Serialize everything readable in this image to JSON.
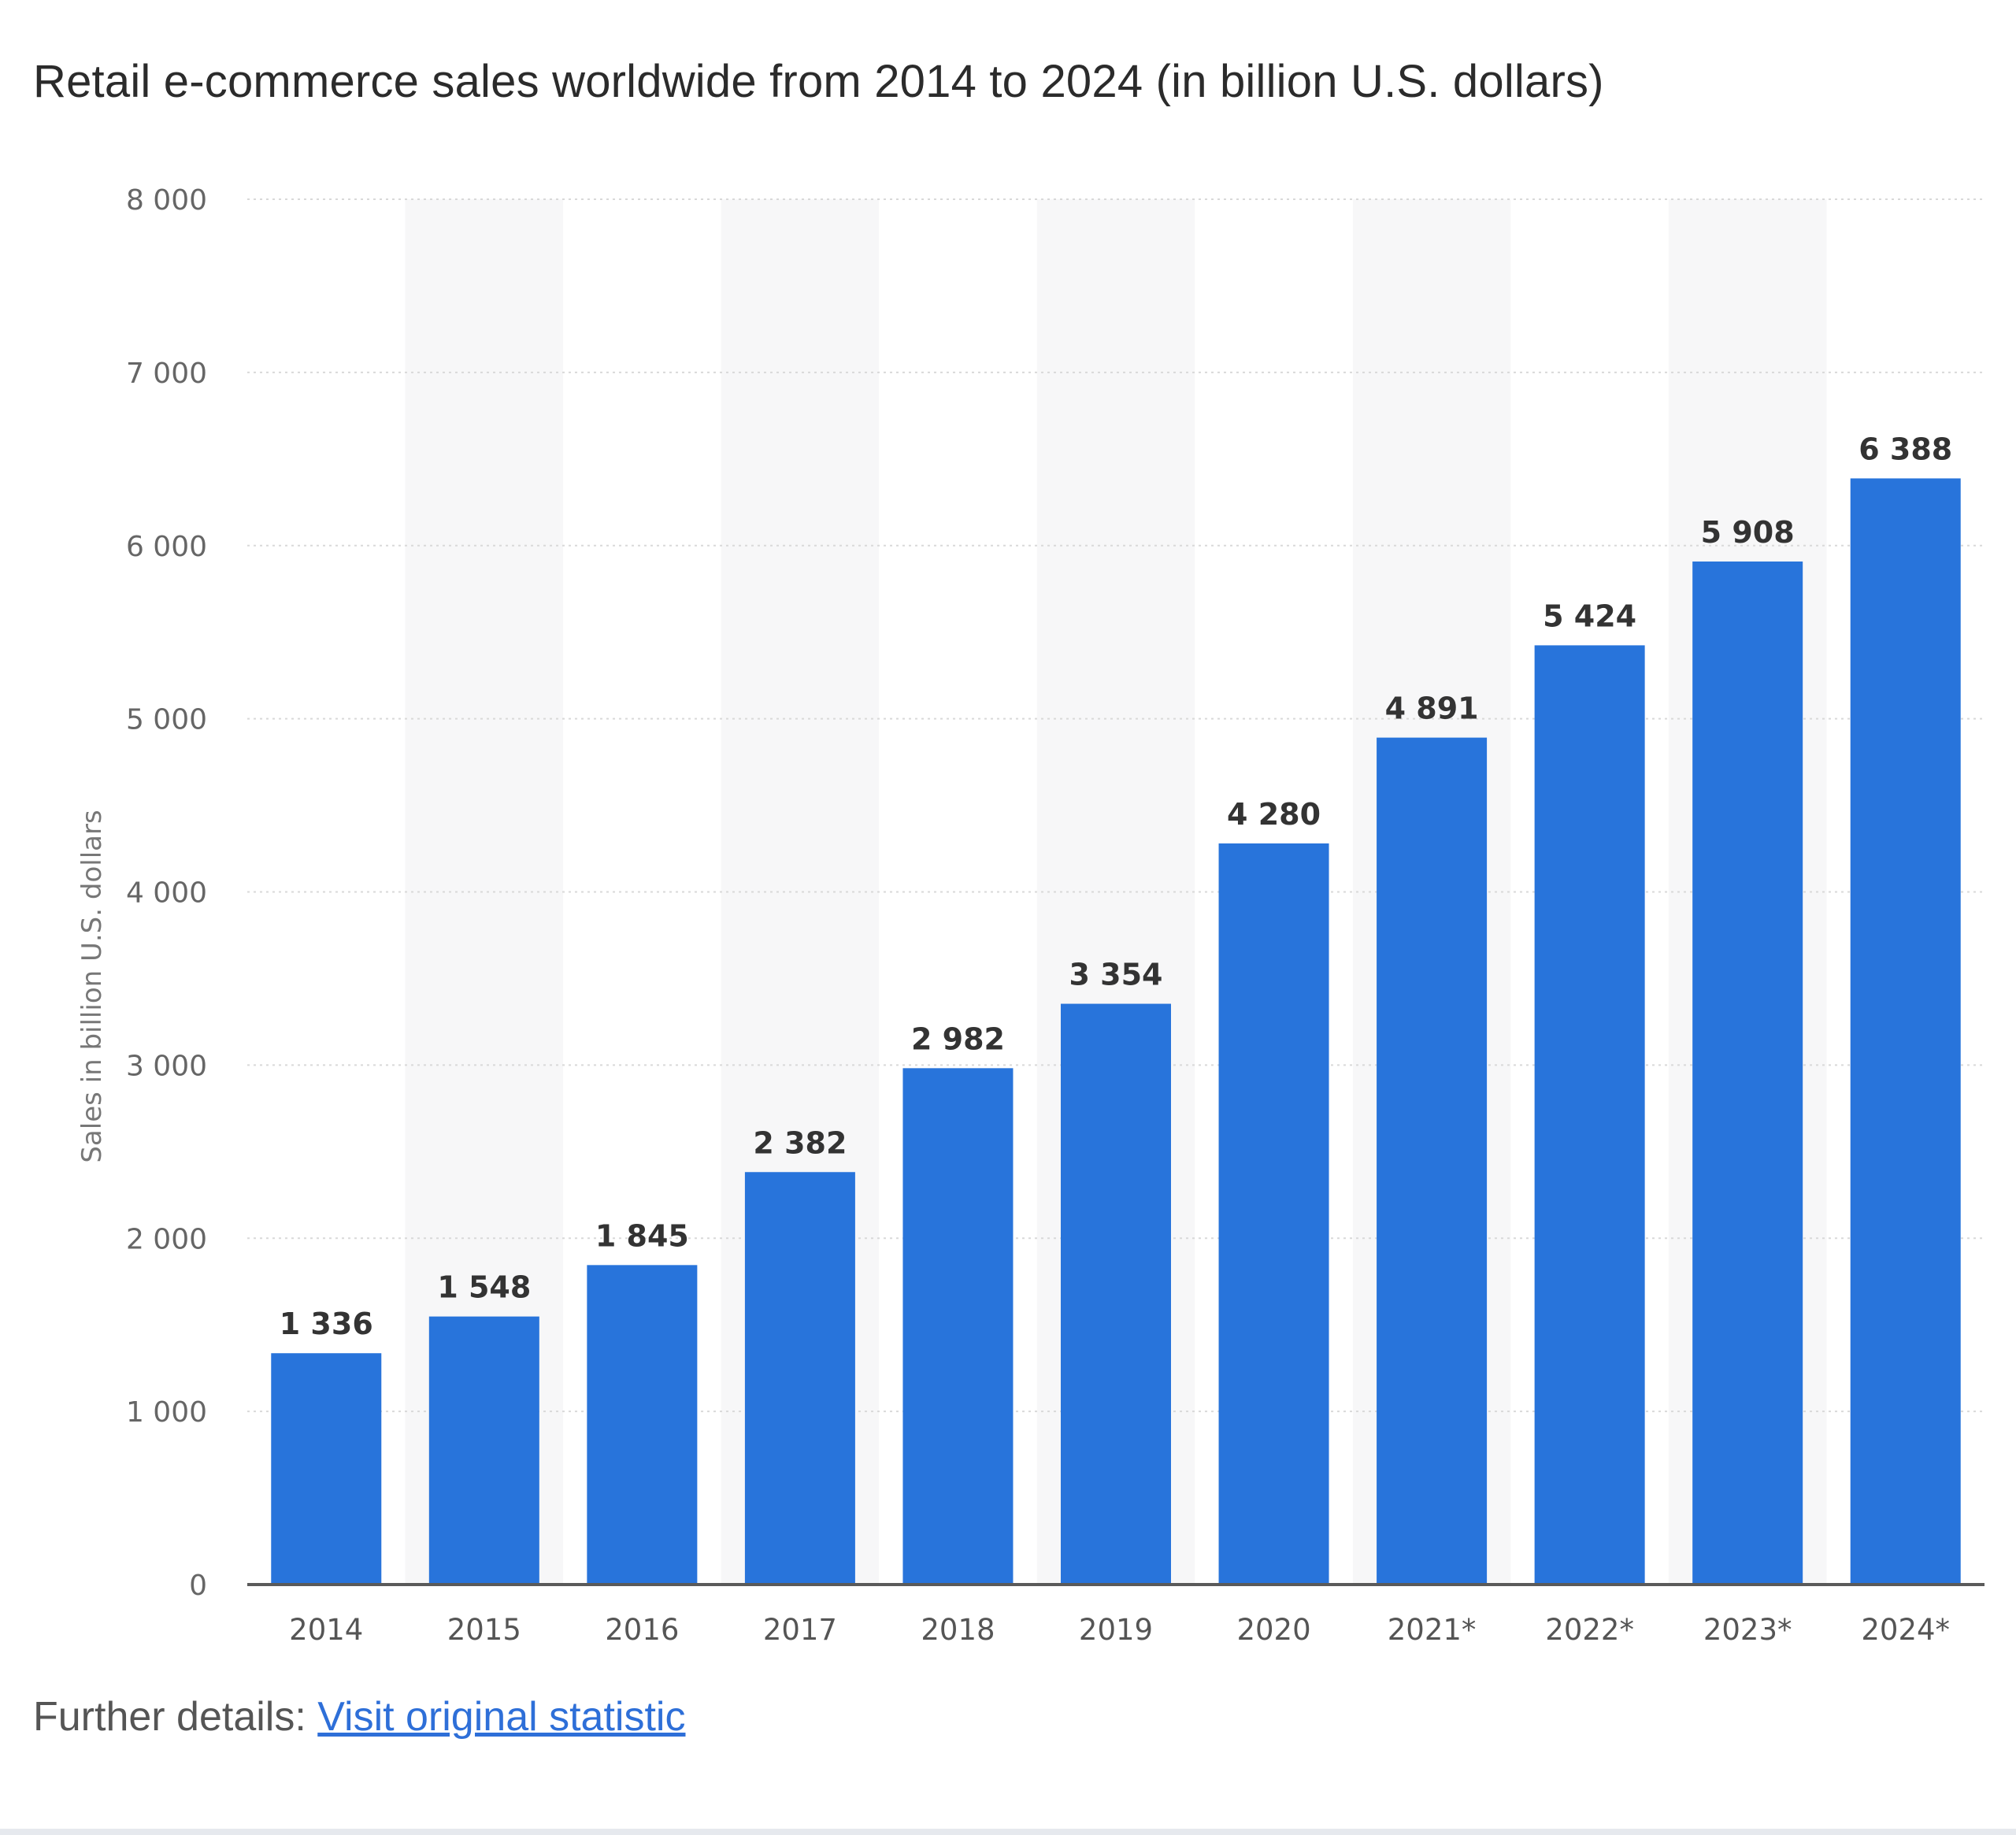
{
  "chart_data": {
    "type": "bar",
    "title": "Retail e-commerce sales worldwide from 2014 to 2024 (in billion U.S. dollars)",
    "xlabel": "",
    "ylabel": "Sales in billion U.S. dollars",
    "categories": [
      "2014",
      "2015",
      "2016",
      "2017",
      "2018",
      "2019",
      "2020",
      "2021*",
      "2022*",
      "2023*",
      "2024*"
    ],
    "values": [
      1336,
      1548,
      1845,
      2382,
      2982,
      3354,
      4280,
      4891,
      5424,
      5908,
      6388
    ],
    "data_labels": [
      "1 336",
      "1 548",
      "1 845",
      "2 382",
      "2 982",
      "3 354",
      "4 280",
      "4 891",
      "5 424",
      "5 908",
      "6 388"
    ],
    "yticks": [
      0,
      1000,
      2000,
      3000,
      4000,
      5000,
      6000,
      7000,
      8000
    ],
    "ytick_labels": [
      "0",
      "1 000",
      "2 000",
      "3 000",
      "4 000",
      "5 000",
      "6 000",
      "7 000",
      "8 000"
    ],
    "ylim": [
      0,
      8000
    ],
    "grid": true,
    "bar_color": "#2874db"
  },
  "footer": {
    "prefix": "Further details: ",
    "link_label": "Visit original statistic"
  }
}
